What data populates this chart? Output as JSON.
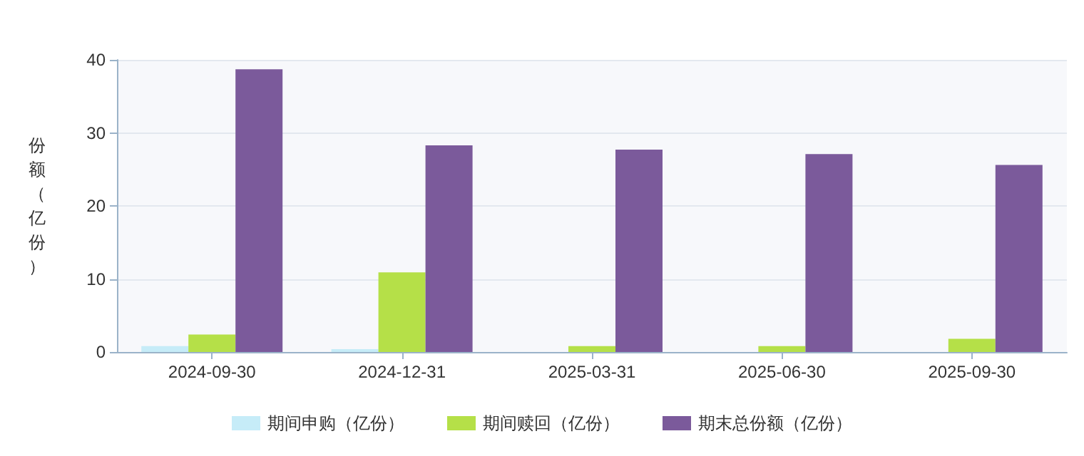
{
  "chart_data": {
    "type": "bar",
    "ylabel": "份额（亿份）",
    "categories": [
      "2024-09-30",
      "2024-12-31",
      "2025-03-31",
      "2025-06-30",
      "2025-09-30"
    ],
    "series": [
      {
        "name": "期间申购（亿份）",
        "color": "#c6ecf8",
        "values": [
          0.8,
          0.4,
          null,
          null,
          null
        ]
      },
      {
        "name": "期间赎回（亿份）",
        "color": "#b5e048",
        "values": [
          2.4,
          10.9,
          0.8,
          0.8,
          1.8
        ]
      },
      {
        "name": "期末总份额（亿份）",
        "color": "#7b5a9b",
        "values": [
          38.7,
          28.3,
          27.7,
          27.1,
          25.6
        ]
      }
    ],
    "ylim": [
      0,
      40
    ],
    "yticks": [
      0,
      10,
      20,
      30,
      40
    ],
    "grid": "y",
    "legend": "bottom"
  }
}
